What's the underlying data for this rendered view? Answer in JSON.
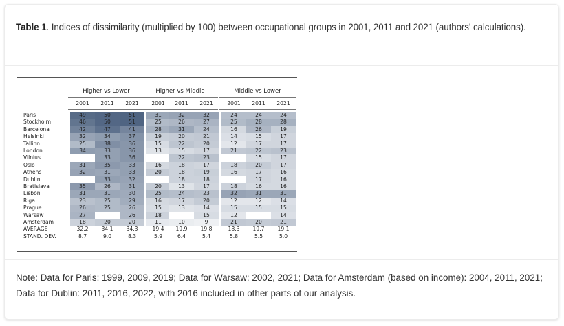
{
  "caption": {
    "label": "Table 1",
    "text": ". Indices of dissimilarity (multiplied by 100) between occupational groups in 2001, 2011 and 2021 (authors' calculations)."
  },
  "note": "Note: Data for Paris: 1999, 2009, 2019; Data for Warsaw: 2002, 2021; Data for Amsterdam (based on income): 2004, 2011, 2021; Data for Dublin: 2011, 2016, 2022, with 2016 included in other parts of our analysis.",
  "table": {
    "groups": [
      "Higher vs Lower",
      "Higher vs Middle",
      "Middle vs Lower"
    ],
    "years": [
      "2001",
      "2011",
      "2021"
    ],
    "rows": [
      {
        "city": "Paris",
        "values": [
          49,
          50,
          51,
          31,
          32,
          32,
          24,
          24,
          24
        ]
      },
      {
        "city": "Stockholm",
        "values": [
          46,
          50,
          51,
          25,
          26,
          27,
          25,
          28,
          28
        ]
      },
      {
        "city": "Barcelona",
        "values": [
          42,
          47,
          41,
          28,
          31,
          24,
          16,
          26,
          19
        ]
      },
      {
        "city": "Helsinki",
        "values": [
          32,
          34,
          37,
          19,
          20,
          21,
          14,
          15,
          17
        ]
      },
      {
        "city": "Tallinn",
        "values": [
          25,
          38,
          36,
          15,
          22,
          20,
          12,
          17,
          17
        ]
      },
      {
        "city": "London",
        "values": [
          34,
          33,
          36,
          13,
          15,
          17,
          21,
          22,
          23
        ]
      },
      {
        "city": "Vilnius",
        "values": [
          null,
          33,
          36,
          null,
          22,
          23,
          null,
          15,
          17
        ]
      },
      {
        "city": "Oslo",
        "values": [
          31,
          35,
          33,
          16,
          18,
          17,
          18,
          20,
          17
        ]
      },
      {
        "city": "Athens",
        "values": [
          32,
          31,
          33,
          20,
          18,
          19,
          16,
          17,
          16
        ]
      },
      {
        "city": "Dublin",
        "values": [
          null,
          33,
          32,
          null,
          18,
          18,
          null,
          17,
          16
        ]
      },
      {
        "city": "Bratislava",
        "values": [
          35,
          26,
          31,
          20,
          13,
          17,
          18,
          16,
          16
        ]
      },
      {
        "city": "Lisbon",
        "values": [
          31,
          31,
          30,
          25,
          24,
          23,
          32,
          31,
          31
        ]
      },
      {
        "city": "Riga",
        "values": [
          23,
          25,
          29,
          16,
          17,
          20,
          12,
          12,
          14
        ]
      },
      {
        "city": "Prague",
        "values": [
          26,
          25,
          26,
          15,
          13,
          14,
          15,
          15,
          15
        ]
      },
      {
        "city": "Warsaw",
        "values": [
          27,
          null,
          26,
          18,
          null,
          15,
          12,
          null,
          14
        ]
      },
      {
        "city": "Amsterdam",
        "values": [
          18,
          20,
          20,
          11,
          10,
          9,
          21,
          20,
          21
        ]
      }
    ],
    "summary": [
      {
        "label": "AVERAGE",
        "values": [
          "32.2",
          "34.1",
          "34.3",
          "19.4",
          "19.9",
          "19.8",
          "18.3",
          "19.7",
          "19.1"
        ]
      },
      {
        "label": "STAND. DEV.",
        "values": [
          "8.7",
          "9.0",
          "8.3",
          "5.9",
          "6.4",
          "5.4",
          "5.8",
          "5.5",
          "5.0"
        ]
      }
    ],
    "color_scale": {
      "low": "#eef0f3",
      "high": "#4f6482",
      "min": 9,
      "max": 51
    }
  }
}
